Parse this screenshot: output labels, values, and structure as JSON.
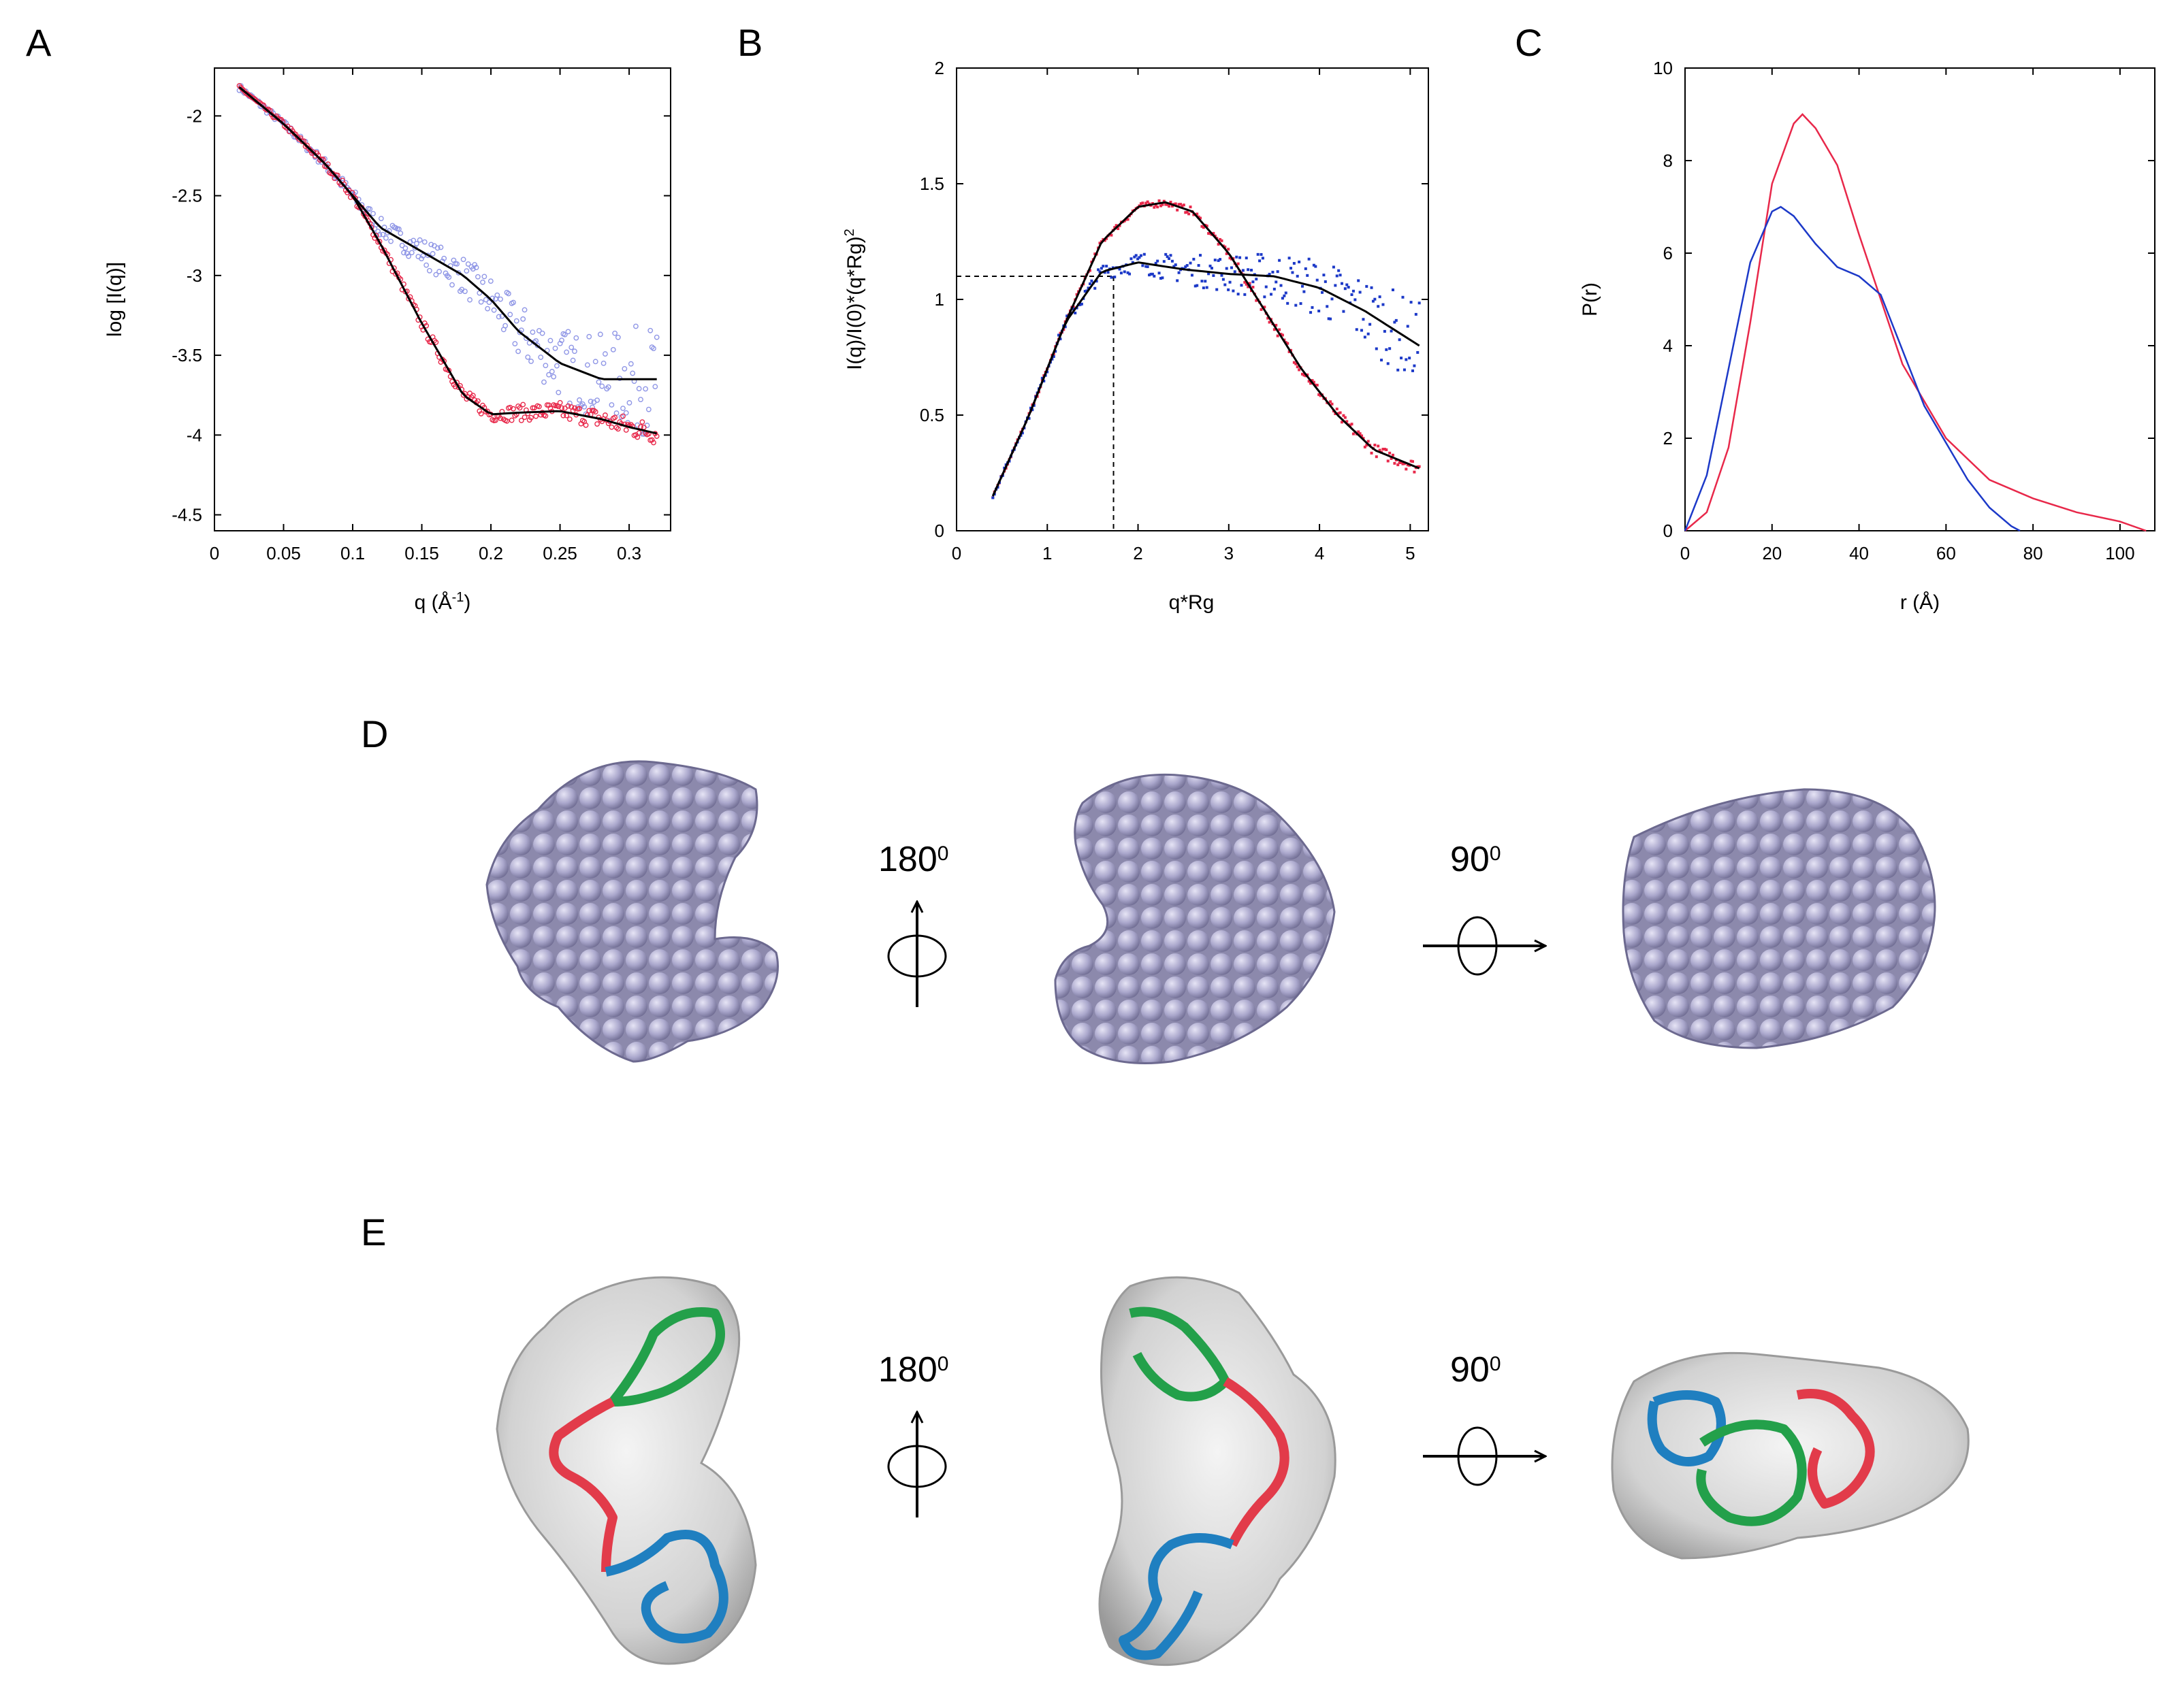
{
  "panels": {
    "A": "A",
    "B": "B",
    "C": "C",
    "D": "D",
    "E": "E"
  },
  "rotations": {
    "d_first": "180",
    "d_first_sup": "0",
    "d_second": "90",
    "d_second_sup": "0",
    "e_first": "180",
    "e_first_sup": "0",
    "e_second": "90",
    "e_second_sup": "0"
  },
  "colors": {
    "red": "#e8284a",
    "blue": "#1c39c8",
    "blue_light": "#8f96e6",
    "fit": "#000000",
    "bead": "#a9a6c9",
    "envelope": "#c8c8c8",
    "ribbon_green": "#23a04a",
    "ribbon_red": "#e23b4a",
    "ribbon_blue": "#1f7fc0"
  },
  "chart_data": [
    {
      "panel": "A",
      "type": "scatter",
      "xlabel": "q (Å",
      "xlabel_sup": "-1",
      "xlabel_tail": ")",
      "ylabel": "log [I(q)]",
      "xlim": [
        0,
        0.33
      ],
      "ylim": [
        -4.6,
        -1.7
      ],
      "x_ticks": [
        "0",
        "0.05",
        "0.1",
        "0.15",
        "0.2",
        "0.25",
        "0.3"
      ],
      "y_ticks": [
        "-2",
        "-2.5",
        "-3",
        "-3.5",
        "-4",
        "-4.5"
      ],
      "series": [
        {
          "color": "blue",
          "style": "points",
          "x": [
            0.018,
            0.05,
            0.08,
            0.1,
            0.12,
            0.15,
            0.18,
            0.2,
            0.22,
            0.25,
            0.28,
            0.3,
            0.32
          ],
          "y": [
            -1.82,
            -2.05,
            -2.3,
            -2.5,
            -2.7,
            -2.85,
            -3.0,
            -3.15,
            -3.35,
            -3.55,
            -3.65,
            -3.65,
            -3.65
          ]
        },
        {
          "color": "red",
          "style": "points",
          "x": [
            0.018,
            0.05,
            0.08,
            0.1,
            0.12,
            0.15,
            0.18,
            0.2,
            0.22,
            0.25,
            0.28,
            0.3,
            0.32
          ],
          "y": [
            -1.82,
            -2.05,
            -2.3,
            -2.5,
            -2.8,
            -3.3,
            -3.75,
            -3.87,
            -3.86,
            -3.85,
            -3.9,
            -3.95,
            -3.99
          ]
        }
      ]
    },
    {
      "panel": "B",
      "type": "scatter",
      "xlabel": "q*Rg",
      "ylabel": "I(q)/I(0)*(q*Rg)",
      "ylabel_sup": "2",
      "xlim": [
        0,
        5.2
      ],
      "ylim": [
        0,
        2
      ],
      "x_ticks": [
        "0",
        "1",
        "2",
        "3",
        "4",
        "5"
      ],
      "y_ticks": [
        "0",
        "0.5",
        "1",
        "1.5",
        "2"
      ],
      "guide": {
        "x": 1.73,
        "y": 1.1
      },
      "series": [
        {
          "color": "red",
          "style": "points",
          "x": [
            0.4,
            0.8,
            1.2,
            1.6,
            2.0,
            2.3,
            2.6,
            3.0,
            3.4,
            3.8,
            4.2,
            4.6,
            5.1
          ],
          "y": [
            0.15,
            0.5,
            0.9,
            1.25,
            1.4,
            1.42,
            1.38,
            1.2,
            0.95,
            0.7,
            0.5,
            0.35,
            0.27
          ]
        },
        {
          "color": "blue",
          "style": "points",
          "x": [
            0.4,
            0.8,
            1.2,
            1.6,
            2.0,
            2.5,
            3.0,
            3.5,
            4.0,
            4.5,
            5.1
          ],
          "y": [
            0.15,
            0.5,
            0.9,
            1.12,
            1.16,
            1.13,
            1.11,
            1.1,
            1.05,
            0.95,
            0.8
          ]
        }
      ]
    },
    {
      "panel": "C",
      "type": "line",
      "xlabel": "r (Å)",
      "ylabel": "P(r)",
      "xlim": [
        0,
        108
      ],
      "ylim": [
        0,
        10
      ],
      "x_ticks": [
        "0",
        "20",
        "40",
        "60",
        "80",
        "100"
      ],
      "y_ticks": [
        "0",
        "2",
        "4",
        "6",
        "8",
        "10"
      ],
      "series": [
        {
          "color": "red",
          "x": [
            0,
            5,
            10,
            15,
            20,
            25,
            27,
            30,
            35,
            40,
            50,
            60,
            70,
            80,
            90,
            100,
            106
          ],
          "y": [
            0,
            0.4,
            1.8,
            4.5,
            7.5,
            8.8,
            9.0,
            8.7,
            7.9,
            6.4,
            3.6,
            2.0,
            1.1,
            0.7,
            0.4,
            0.2,
            0
          ]
        },
        {
          "color": "blue",
          "x": [
            0,
            5,
            10,
            15,
            20,
            22,
            25,
            30,
            35,
            40,
            45,
            55,
            65,
            70,
            75,
            77
          ],
          "y": [
            0,
            1.2,
            3.5,
            5.8,
            6.9,
            7.0,
            6.8,
            6.2,
            5.7,
            5.5,
            5.1,
            2.7,
            1.1,
            0.5,
            0.1,
            0
          ]
        }
      ]
    }
  ]
}
